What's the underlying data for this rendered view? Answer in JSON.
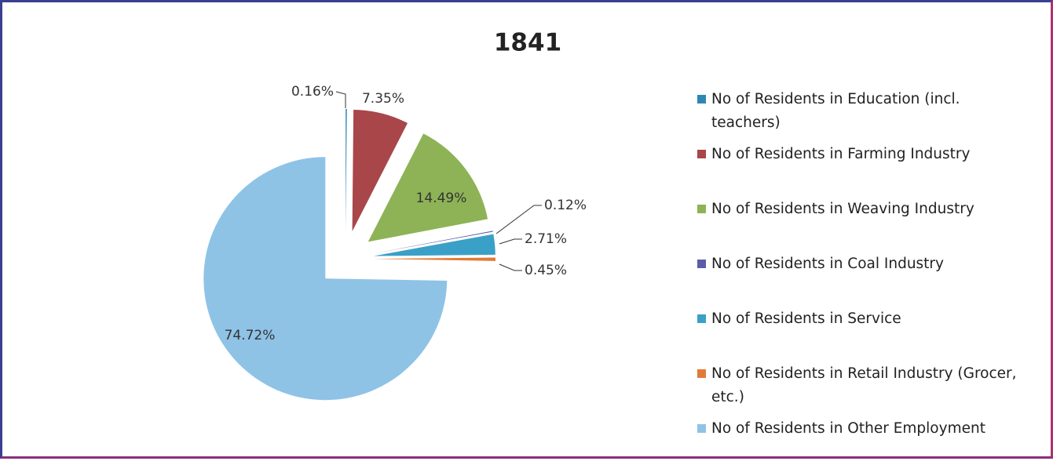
{
  "chart_data": {
    "type": "pie",
    "title": "1841",
    "categories": [
      "No of Residents in Education (incl. teachers)",
      "No of Residents in Farming Industry",
      "No of Residents in Weaving Industry",
      "No of Residents in Coal Industry",
      "No of Residents in Service",
      "No of Residents in Retail Industry (Grocer, etc.)",
      "No of Residents in Other Employment"
    ],
    "values": [
      0.16,
      7.35,
      14.49,
      0.12,
      2.71,
      0.45,
      74.72
    ],
    "value_labels": [
      "0.16%",
      "7.35%",
      "14.49%",
      "0.12%",
      "2.71%",
      "0.45%",
      "74.72%"
    ],
    "colors": [
      "#2e86b5",
      "#a8464a",
      "#8db356",
      "#5b5ea6",
      "#3aa0c8",
      "#e07b39",
      "#8ec3e6"
    ],
    "legend": "right"
  }
}
